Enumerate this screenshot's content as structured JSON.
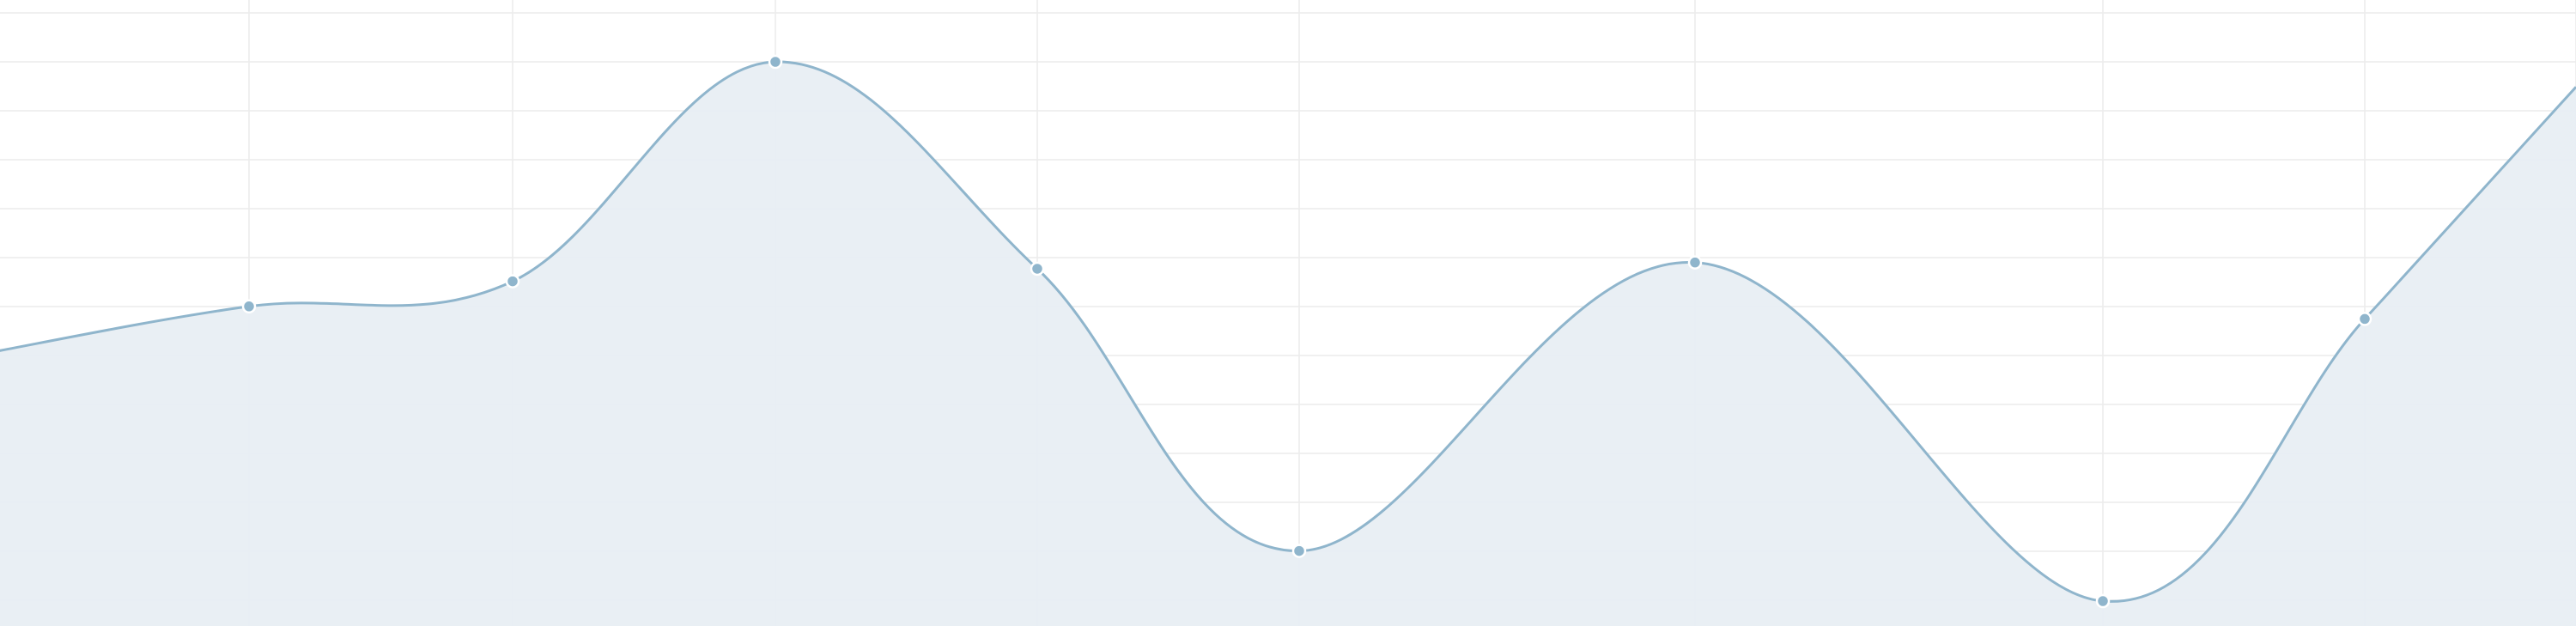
{
  "chart_data": {
    "type": "area",
    "title": "",
    "xlabel": "",
    "ylabel": "",
    "grid": true,
    "legend": "none",
    "ylim": [
      0,
      100
    ],
    "x": [
      1,
      2,
      3,
      4,
      5,
      6,
      7,
      8,
      9
    ],
    "series": [
      {
        "values": [
          51,
          55,
          90,
          57,
          12,
          58,
          4,
          49,
          86
        ]
      }
    ],
    "colors": {
      "line": "#8fb5cc",
      "fill": "#e8eef3",
      "marker": "#8fb5cc",
      "marker_stroke": "#ffffff",
      "grid": "#ececec"
    }
  }
}
